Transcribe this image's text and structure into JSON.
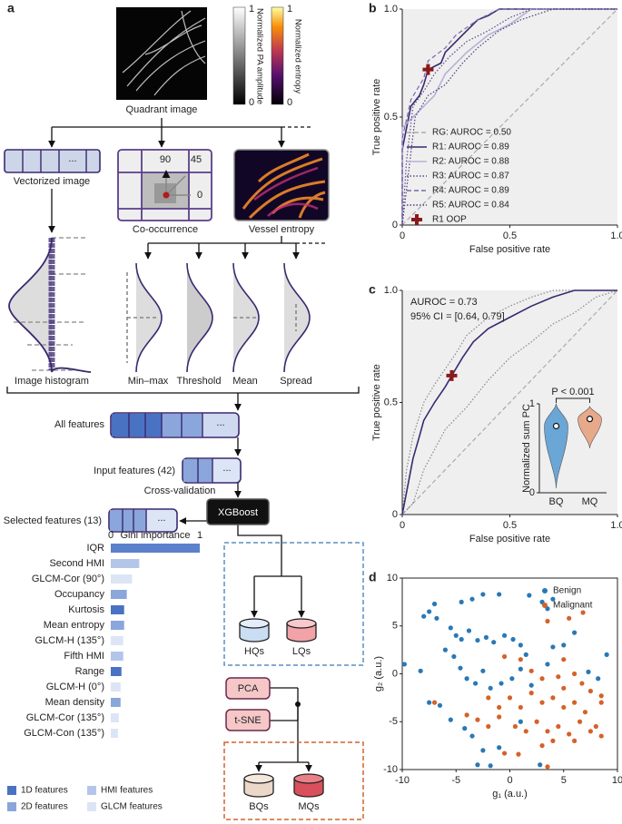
{
  "diagram": {
    "panel_label": "a",
    "quadrant_image": "Quadrant image",
    "colorbars": [
      {
        "label": "Normalized PA amplitude",
        "ticks": [
          0,
          1
        ]
      },
      {
        "label": "Normalized entropy",
        "ticks": [
          0,
          1
        ]
      }
    ],
    "ellipsis": "...",
    "vectorized_image": "Vectorized image",
    "co_occurrence": "Co-occurrence",
    "angles": [
      90,
      45,
      0
    ],
    "vessel_entropy": "Vessel entropy",
    "image_histogram": "Image histogram",
    "statistics": [
      "Min–max",
      "Threshold",
      "Mean",
      "Spread"
    ],
    "all_features": "All features",
    "input_features": "Input features (42)",
    "cross_validation": "Cross-validation",
    "xgboost": "XGBoost",
    "selected_features": "Selected features (13)",
    "quality_groups": [
      "HQs",
      "LQs"
    ],
    "reductions": [
      "PCA",
      "t-SNE"
    ],
    "malignancy_groups": [
      "BQs",
      "MQs"
    ]
  },
  "chart_data": [
    {
      "type": "barh",
      "title": "Gini importance",
      "categories": [
        "IQR",
        "Second HMI",
        "GLCM-Cor (90°)",
        "Occupancy",
        "Kurtosis",
        "Mean entropy",
        "GLCM-H (135°)",
        "Fifth HMI",
        "Range",
        "GLCM-H (0°)",
        "Mean density",
        "GLCM-Cor (135°)",
        "GLCM-Con (135°)"
      ],
      "values": [
        1.0,
        0.32,
        0.24,
        0.18,
        0.15,
        0.15,
        0.14,
        0.14,
        0.12,
        0.11,
        0.11,
        0.09,
        0.08
      ],
      "colors": [
        "#5b80cc",
        "#b3c6ea",
        "#dce5f5",
        "#8aa6da",
        "#4a72c2",
        "#8aa6da",
        "#dce5f5",
        "#b3c6ea",
        "#4a72c2",
        "#dce5f5",
        "#8aa6da",
        "#dce5f5",
        "#dce5f5"
      ],
      "xlim": [
        0,
        1
      ],
      "xticks": [
        0,
        1
      ],
      "legend": [
        {
          "name": "1D features",
          "color": "#4a72c2"
        },
        {
          "name": "2D features",
          "color": "#8aa6da"
        },
        {
          "name": "HMI features",
          "color": "#b3c6ea"
        },
        {
          "name": "GLCM features",
          "color": "#dce5f5"
        }
      ]
    },
    {
      "type": "roc",
      "panel_label": "b",
      "x_label": "False positive rate",
      "y_label": "True positive rate",
      "xlim": [
        0,
        1
      ],
      "ylim": [
        0,
        1
      ],
      "xticks": [
        0,
        0.5,
        {
          "value": 1,
          "label": "1.0"
        }
      ],
      "yticks": [
        0,
        0.5,
        {
          "value": 1,
          "label": "1.0"
        }
      ],
      "legend": "lower right",
      "series": [
        {
          "name": "RG: AUROC = 0.50",
          "color": "#aaaaaa",
          "style": "dashed",
          "x": [
            0,
            1
          ],
          "y": [
            0,
            1
          ]
        },
        {
          "name": "R1: AUROC = 0.89",
          "color": "#3b2870",
          "style": "solid",
          "x": [
            0,
            0,
            0.02,
            0.04,
            0.08,
            0.1,
            0.12,
            0.18,
            0.2,
            0.25,
            0.3,
            0.35,
            0.4,
            0.45,
            1
          ],
          "y": [
            0,
            0.35,
            0.45,
            0.55,
            0.6,
            0.65,
            0.72,
            0.75,
            0.8,
            0.85,
            0.9,
            0.95,
            0.97,
            1,
            1
          ]
        },
        {
          "name": "R2: AUROC = 0.88",
          "color": "#b8b0d6",
          "style": "solid",
          "x": [
            0,
            0,
            0.05,
            0.1,
            0.15,
            0.2,
            0.3,
            0.4,
            0.5,
            0.6,
            1
          ],
          "y": [
            0,
            0.45,
            0.5,
            0.55,
            0.6,
            0.7,
            0.8,
            0.88,
            0.93,
            1,
            1
          ]
        },
        {
          "name": "R3: AUROC = 0.87",
          "color": "#5a4a8a",
          "style": "dotted",
          "x": [
            0,
            0.02,
            0.05,
            0.1,
            0.15,
            0.22,
            0.3,
            0.4,
            0.5,
            0.6,
            1
          ],
          "y": [
            0,
            0.3,
            0.55,
            0.62,
            0.7,
            0.78,
            0.85,
            0.9,
            0.96,
            1,
            1
          ]
        },
        {
          "name": "R4: AUROC = 0.89",
          "color": "#7a6aa8",
          "style": "dashed",
          "x": [
            0,
            0,
            0.04,
            0.1,
            0.12,
            0.2,
            0.25,
            0.35,
            0.45,
            1
          ],
          "y": [
            0,
            0.4,
            0.58,
            0.68,
            0.76,
            0.82,
            0.88,
            0.95,
            1,
            1
          ]
        },
        {
          "name": "R5: AUROC = 0.84",
          "color": "#4a3a7a",
          "style": "dotted",
          "x": [
            0,
            0.03,
            0.06,
            0.12,
            0.2,
            0.28,
            0.35,
            0.45,
            0.55,
            0.7,
            1
          ],
          "y": [
            0,
            0.25,
            0.5,
            0.6,
            0.65,
            0.75,
            0.82,
            0.9,
            0.95,
            1,
            1
          ]
        }
      ],
      "points": [
        {
          "name": "R1 OOP",
          "color": "#8b1a1a",
          "x": 0.12,
          "y": 0.72
        }
      ]
    },
    {
      "type": "roc",
      "panel_label": "c",
      "x_label": "False positive rate",
      "y_label": "True positive rate",
      "xlim": [
        0,
        1
      ],
      "ylim": [
        0,
        1
      ],
      "xticks": [
        0,
        0.5,
        {
          "value": 1,
          "label": "1.0"
        }
      ],
      "yticks": [
        0,
        0.5,
        {
          "value": 1,
          "label": "1.0"
        }
      ],
      "annotations": [
        "AUROC = 0.73",
        "95% CI = [0.64, 0.79]"
      ],
      "series": [
        {
          "color": "#aaaaaa",
          "style": "dashed",
          "x": [
            0,
            1
          ],
          "y": [
            0,
            1
          ]
        },
        {
          "color": "#888888",
          "style": "dotted",
          "x": [
            0,
            0.02,
            0.05,
            0.1,
            0.15,
            0.2,
            0.25,
            0.3,
            0.4,
            0.5,
            0.6,
            0.7,
            0.8,
            1
          ],
          "y": [
            0,
            0.2,
            0.35,
            0.5,
            0.58,
            0.65,
            0.72,
            0.8,
            0.88,
            0.93,
            0.97,
            1,
            1,
            1
          ]
        },
        {
          "color": "#888888",
          "style": "dotted",
          "x": [
            0,
            0.05,
            0.1,
            0.2,
            0.3,
            0.4,
            0.5,
            0.6,
            0.7,
            0.8,
            0.9,
            1
          ],
          "y": [
            0,
            0.05,
            0.2,
            0.38,
            0.48,
            0.6,
            0.7,
            0.77,
            0.85,
            0.9,
            0.97,
            1
          ]
        },
        {
          "color": "#3b2870",
          "style": "solid",
          "x": [
            0,
            0.02,
            0.05,
            0.08,
            0.1,
            0.15,
            0.2,
            0.23,
            0.28,
            0.33,
            0.4,
            0.5,
            0.6,
            0.7,
            0.8,
            0.9,
            1
          ],
          "y": [
            0,
            0.1,
            0.25,
            0.35,
            0.42,
            0.5,
            0.57,
            0.62,
            0.7,
            0.77,
            0.83,
            0.88,
            0.93,
            0.97,
            1,
            1,
            1
          ]
        }
      ],
      "points": [
        {
          "color": "#8b1a1a",
          "x": 0.23,
          "y": 0.62
        }
      ]
    },
    {
      "type": "violin",
      "y_label": "Normalized sum PC",
      "annotation": "P < 0.001",
      "categories": [
        "BQ",
        "MQ"
      ],
      "values": [
        0.75,
        0.83
      ],
      "ranges": [
        [
          0.05,
          1.0
        ],
        [
          0.5,
          0.97
        ]
      ],
      "colors": [
        "#6aa6d6",
        "#e8a98a"
      ],
      "ylim": [
        0,
        1
      ],
      "yticks": [
        0,
        1
      ]
    },
    {
      "type": "scatter",
      "panel_label": "d",
      "x_label": "g₁ (a.u.)",
      "y_label": "g₂ (a.u.)",
      "xlim": [
        -10,
        10
      ],
      "ylim": [
        -10,
        10
      ],
      "xticks": [
        -10,
        -5,
        0,
        5,
        10
      ],
      "yticks": [
        -10,
        -5,
        0,
        5,
        10
      ],
      "legend": "upper right",
      "series": [
        {
          "name": "Benign",
          "color": "#2a78b5",
          "x": [
            -7,
            -7.5,
            -6.8,
            -8,
            -4.5,
            -3.5,
            -2.5,
            -1,
            1.8,
            3,
            4,
            3.5,
            -5.5,
            -5,
            -4.5,
            -3.8,
            -3,
            -2.2,
            -1.5,
            -0.5,
            0.3,
            1,
            1.5,
            -6,
            -5.2,
            -4.6,
            -4,
            -3.2,
            -2.5,
            -1.8,
            -0.8,
            0.2,
            1,
            2,
            3.5,
            4,
            5,
            6,
            7.3,
            8.2,
            9,
            -9.8,
            -8.3,
            -7.5,
            -6.5,
            -5.5,
            -4.2,
            -3.5,
            -2.5,
            -1.8,
            -3,
            -1,
            2.8,
            1
          ],
          "y": [
            7.3,
            6.5,
            5.8,
            6,
            7.5,
            7.8,
            8.3,
            8.3,
            8.2,
            7.5,
            7.8,
            6.8,
            4.8,
            4,
            3.6,
            4.5,
            3.5,
            3.8,
            3.3,
            4,
            3.6,
            3,
            2,
            2.5,
            1.8,
            0.6,
            -0.5,
            -1,
            0.3,
            -1.5,
            -1,
            -0.5,
            0.5,
            -1.2,
            1,
            2.8,
            3,
            4.3,
            0.2,
            -0.5,
            2,
            1,
            0.3,
            -3,
            -3.3,
            -4.8,
            -5.7,
            -6.5,
            -8,
            -9.6,
            -9.5,
            -7.7,
            -9.5,
            -5
          ]
        },
        {
          "name": "Malignant",
          "color": "#d4622a",
          "x": [
            3.5,
            5.5,
            6.8,
            -0.5,
            1,
            2,
            3,
            4.5,
            5,
            6,
            6.7,
            7.5,
            8.5,
            -2,
            -1,
            0,
            1,
            2,
            3,
            4,
            5,
            6,
            7,
            8.5,
            -4,
            -3,
            -2,
            -1,
            0.5,
            1.5,
            2.5,
            3.5,
            4.5,
            5.5,
            6.5,
            7.5,
            8.5,
            3,
            4,
            6,
            8,
            -0.5,
            0.8,
            3.5,
            -7,
            5
          ],
          "y": [
            5.5,
            5.8,
            6.4,
            1.8,
            1.5,
            0.3,
            -0.5,
            -0.3,
            1.5,
            0,
            -1,
            -1.8,
            -2.3,
            -2.5,
            -3.5,
            -2.5,
            -3.5,
            -2,
            -3,
            -2.5,
            -3.5,
            -3,
            -4,
            -3,
            -4.3,
            -4.8,
            -5.5,
            -4.5,
            -5.5,
            -6,
            -5,
            -6,
            -5.5,
            -6.3,
            -5,
            -6,
            -6.5,
            -7.5,
            -7,
            -7,
            -5.5,
            -8.3,
            -8.4,
            -9.7,
            -3,
            -1.5
          ]
        }
      ]
    }
  ]
}
